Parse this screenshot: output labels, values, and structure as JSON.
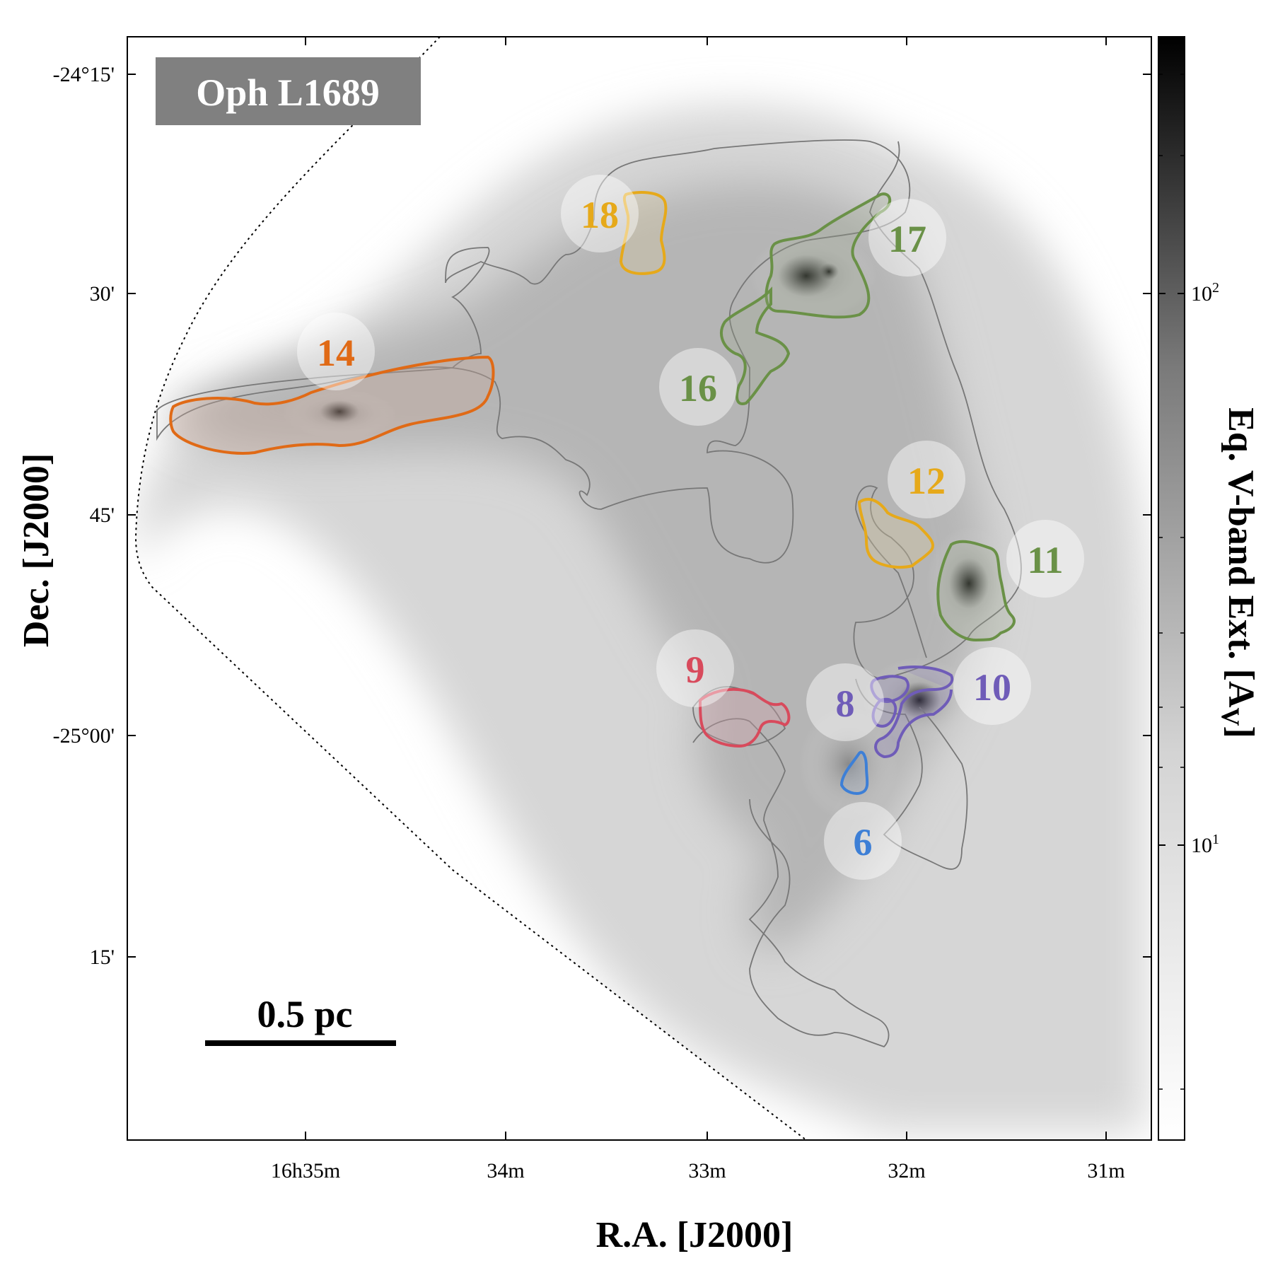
{
  "chart_data": {
    "type": "image",
    "title": "Oph L1689",
    "xlabel": "R.A. [J2000]",
    "ylabel": "Dec. [J2000]",
    "x_ticks": [
      "16h35m",
      "34m",
      "33m",
      "32m",
      "31m"
    ],
    "y_ticks": [
      "-24°15'",
      "30'",
      "45'",
      "-25°00'",
      "15'"
    ],
    "colorbar": {
      "label": "Eq. V-band Ext. [A",
      "label_sub": "V",
      "label_end": "]",
      "scale": "log",
      "ticks": [
        {
          "base": "10",
          "exp": "2"
        },
        {
          "base": "10",
          "exp": "1"
        }
      ]
    },
    "scale_bar": "0.5 pc",
    "regions": [
      {
        "id": "6",
        "color": "#3d7fd6"
      },
      {
        "id": "8",
        "color": "#6f5cb8"
      },
      {
        "id": "9",
        "color": "#d84a5c"
      },
      {
        "id": "10",
        "color": "#6f5cb8"
      },
      {
        "id": "11",
        "color": "#6a9147"
      },
      {
        "id": "12",
        "color": "#e6a91a"
      },
      {
        "id": "14",
        "color": "#e06a16"
      },
      {
        "id": "16",
        "color": "#6a9147"
      },
      {
        "id": "17",
        "color": "#6a9147"
      },
      {
        "id": "18",
        "color": "#e6a91a"
      }
    ]
  }
}
